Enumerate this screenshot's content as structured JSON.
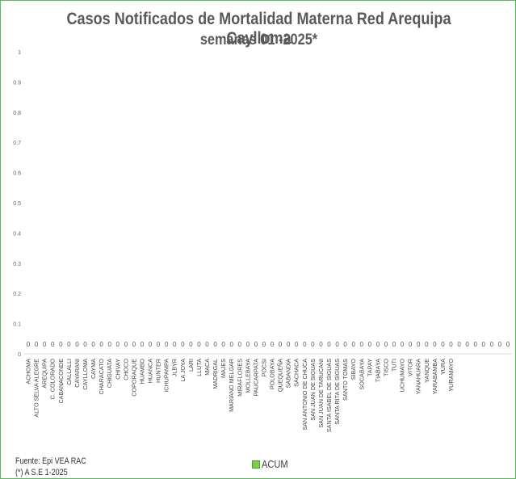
{
  "chart_data": {
    "type": "bar",
    "title": "Casos  Notificados de Mortalidad Materna Red Arequipa Caylloma",
    "subtitle": "semanas 01  -2025*",
    "xlabel": "",
    "ylabel": "",
    "ylim": [
      0,
      1
    ],
    "y_ticks": [
      "0",
      "0.1",
      "0.2",
      "0.3",
      "0.4",
      "0.5",
      "0.6",
      "0.7",
      "0.8",
      "0.9",
      "1"
    ],
    "grid": false,
    "legend_position": "bottom",
    "series": [
      {
        "name": "ACUM",
        "color": "#7dcf43",
        "values": [
          0,
          0,
          0,
          0,
          0,
          0,
          0,
          0,
          0,
          0,
          0,
          0,
          0,
          0,
          0,
          0,
          0,
          0,
          0,
          0,
          0,
          0,
          0,
          0,
          0,
          0,
          0,
          0,
          0,
          0,
          0,
          0,
          0,
          0,
          0,
          0,
          0,
          0,
          0,
          0,
          0,
          0,
          0,
          0,
          0,
          0,
          0,
          0,
          0,
          0,
          0,
          0,
          0,
          0,
          0,
          0,
          0,
          0,
          0,
          0
        ]
      }
    ],
    "categories": [
      "ACHOMA",
      "ALTO SELVA ALEGRE",
      "AREQUIPA",
      "C. COLORADO",
      "CABANACONDE",
      "CALLALLI",
      "CAYARANI",
      "CAYLLOMA",
      "CAYMA",
      "CHARACATO",
      "CHIGUATA",
      "CHIVAY",
      "CHOCO",
      "COPORAQUE",
      "HUAMBO",
      "HUANCA",
      "HUNTER",
      "ICHUPAMPA",
      "JLBYR",
      "LA JOYA",
      "LARI",
      "LLUTA",
      "MACA",
      "MADRIGAL",
      "MAJES",
      "MARIANO MELGAR",
      "MIRAFLORES",
      "MOLLEBAYA",
      "PAUCARPATA",
      "POCSI",
      "POLOBAYA",
      "QUEQUEÑA",
      "SABANDIA",
      "SACHACA",
      "SAN ANTONIO DE CHUCA",
      "SAN JUAN DE SIGUAS",
      "SAN JUAN DE TARUCANI",
      "SANTA ISABEL DE SIGUAS",
      "SANTA RITA DE SIGUAS",
      "SANTO TOMAS",
      "SIBAYO",
      "SOCABAYA",
      "TAPAY",
      "TIABAYA",
      "TISCO",
      "TUTI",
      "UCHUMAYO",
      "VITOR",
      "YANAHUARA",
      "YANQUE",
      "YARABAMBA",
      "YURA",
      "YURAMAYO",
      "",
      "",
      "",
      "",
      "",
      "",
      ""
    ]
  },
  "footer": {
    "source": "Fuente: Epi VEA RAC",
    "note": "(*) A S.E  1-2025"
  }
}
